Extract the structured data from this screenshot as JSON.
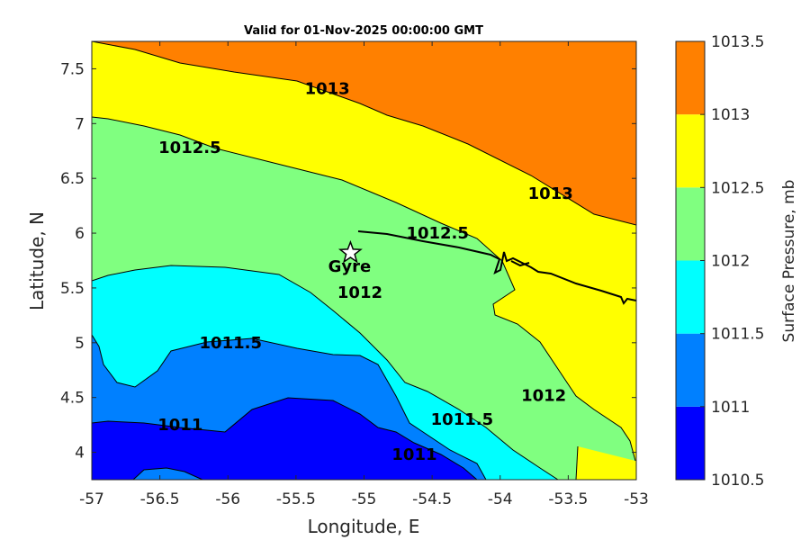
{
  "chart_data": {
    "type": "contour",
    "title": "Valid for 01-Nov-2025 00:00:00 GMT",
    "xlabel": "Longitude, E",
    "ylabel": "Latitude, N",
    "xlim": [
      -57,
      -53
    ],
    "ylim": [
      3.75,
      7.75
    ],
    "x_ticks": [
      "-57",
      "-56.5",
      "-56",
      "-55.5",
      "-55",
      "-54.5",
      "-54",
      "-53.5",
      "-53"
    ],
    "y_ticks": [
      "4",
      "4.5",
      "5",
      "5.5",
      "6",
      "6.5",
      "7",
      "7.5"
    ],
    "colorbar": {
      "label": "Surface Pressure, mb",
      "ticks": [
        "1010.5",
        "1011",
        "1011.5",
        "1012",
        "1012.5",
        "1013",
        "1013.5"
      ],
      "levels": [
        1010.5,
        1011,
        1011.5,
        1012,
        1012.5,
        1013,
        1013.5
      ],
      "colors": [
        "#0000ff",
        "#0080ff",
        "#00ffff",
        "#80ff80",
        "#ffff00",
        "#ff8000",
        "#ff0000"
      ]
    },
    "contour_labels": [
      {
        "text": "1013",
        "lon": -55.27,
        "lat": 7.32
      },
      {
        "text": "1013",
        "lon": -53.63,
        "lat": 6.36
      },
      {
        "text": "1012.5",
        "lon": -56.28,
        "lat": 6.78
      },
      {
        "text": "1012.5",
        "lon": -54.46,
        "lat": 6.0
      },
      {
        "text": "1012",
        "lon": -55.03,
        "lat": 5.46
      },
      {
        "text": "1012",
        "lon": -53.68,
        "lat": 4.52
      },
      {
        "text": "1011.5",
        "lon": -55.98,
        "lat": 5.0
      },
      {
        "text": "1011.5",
        "lon": -54.28,
        "lat": 4.3
      },
      {
        "text": "1011",
        "lon": -56.35,
        "lat": 4.25
      },
      {
        "text": "1011",
        "lon": -54.63,
        "lat": 3.98
      }
    ],
    "marker": {
      "label": "Gyre",
      "lon": -55.1,
      "lat": 5.82,
      "symbol": "star"
    }
  }
}
